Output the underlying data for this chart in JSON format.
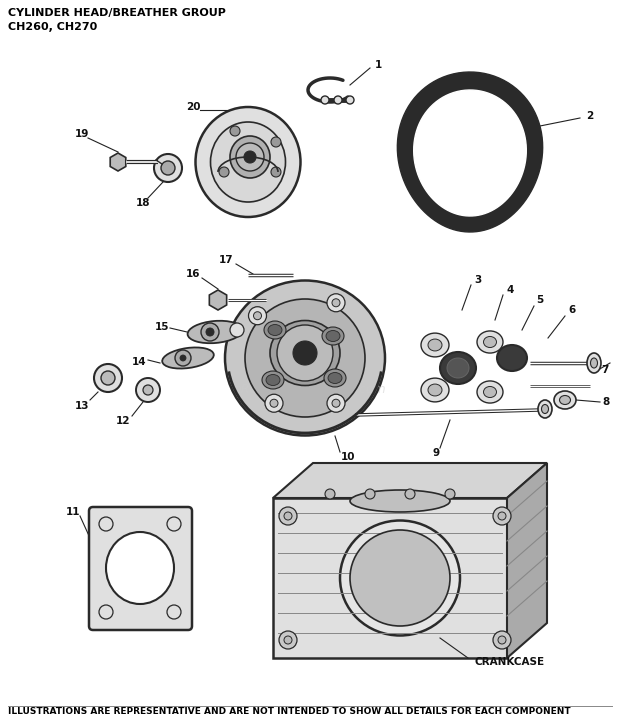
{
  "title_line1": "CYLINDER HEAD/BREATHER GROUP",
  "title_line2": "CH260, CH270",
  "footer_text": "ILLUSTRATIONS ARE REPRESENTATIVE AND ARE NOT INTENDED TO SHOW ALL DETAILS FOR EACH COMPONENT",
  "background_color": "#ffffff",
  "title_color": "#000000",
  "footer_color": "#000000",
  "title_fontsize": 8.0,
  "footer_fontsize": 6.5,
  "watermark_text": "eReplacementParts.com",
  "label_fontsize": 7.5,
  "label_bold": true,
  "line_color": "#222222",
  "dark_gray": "#2a2a2a",
  "mid_gray": "#888888",
  "light_gray": "#cccccc",
  "fill_gray": "#bbbbbb",
  "fill_light": "#e0e0e0",
  "fill_dark": "#555555"
}
